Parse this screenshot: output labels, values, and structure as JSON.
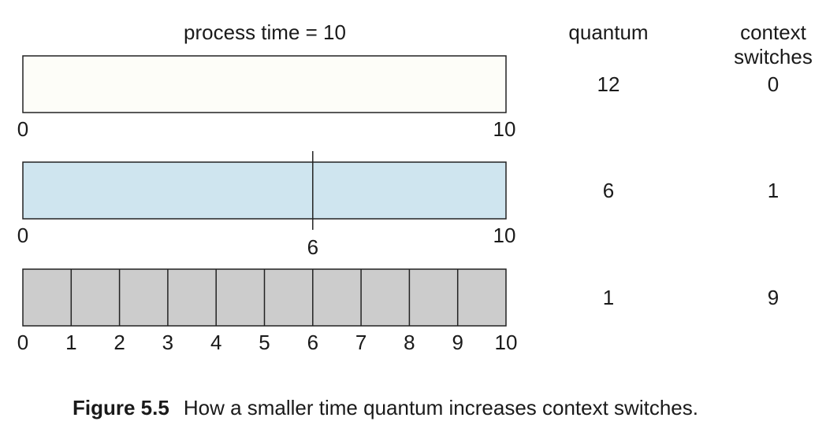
{
  "header": {
    "process_time": "process time = 10",
    "quantum": "quantum",
    "context_switches_line1": "context",
    "context_switches_line2": "switches"
  },
  "rows": [
    {
      "quantum": "12",
      "context_switches": "0",
      "fill_color": "#fdfdf8",
      "divisions": [],
      "labels": [
        "0",
        "10"
      ],
      "label_positions": [
        0,
        10
      ]
    },
    {
      "quantum": "6",
      "context_switches": "1",
      "fill_color": "#cfe5ef",
      "divisions": [
        6
      ],
      "labels": [
        "0",
        "6",
        "10"
      ],
      "label_positions": [
        0,
        6,
        10
      ]
    },
    {
      "quantum": "1",
      "context_switches": "9",
      "fill_color": "#cccccc",
      "divisions": [
        1,
        2,
        3,
        4,
        5,
        6,
        7,
        8,
        9
      ],
      "labels": [
        "0",
        "1",
        "2",
        "3",
        "4",
        "5",
        "6",
        "7",
        "8",
        "9",
        "10"
      ],
      "label_positions": [
        0,
        1,
        2,
        3,
        4,
        5,
        6,
        7,
        8,
        9,
        10
      ]
    }
  ],
  "time_range": [
    0,
    10
  ],
  "caption": {
    "number": "Figure 5.5",
    "text": "How a smaller time quantum increases context switches."
  }
}
